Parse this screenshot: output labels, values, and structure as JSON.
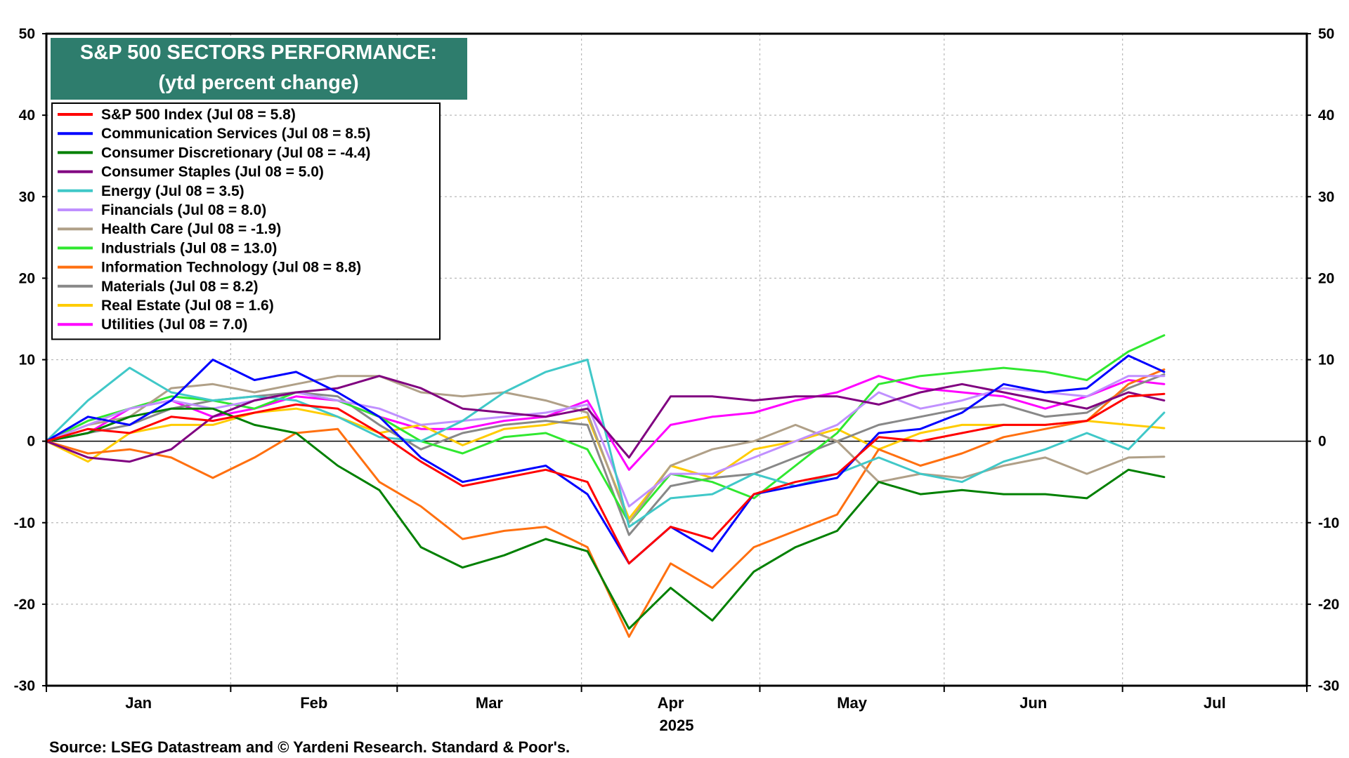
{
  "chart_data": {
    "type": "line",
    "title": "S&P 500 SECTORS PERFORMANCE:",
    "subtitle": "(ytd percent change)",
    "year_label": "2025",
    "source": "Source: LSEG Datastream and © Yardeni Research. Standard & Poor's.",
    "ylim": [
      -30,
      50
    ],
    "y_ticks": [
      -30,
      -20,
      -10,
      0,
      10,
      20,
      30,
      40,
      50
    ],
    "months": [
      "Jan",
      "Feb",
      "Mar",
      "Apr",
      "May",
      "Jun",
      "Jul"
    ],
    "x_range_days": [
      0,
      212
    ],
    "grid": true,
    "legend_position": "top-left",
    "title_box_color": "#2e7d6d",
    "x": [
      0,
      7,
      14,
      21,
      28,
      35,
      42,
      49,
      56,
      63,
      70,
      77,
      84,
      91,
      98,
      105,
      112,
      119,
      126,
      133,
      140,
      147,
      154,
      161,
      168,
      175,
      182,
      188
    ],
    "series": [
      {
        "name": "S&P 500 Index (Jul 08 = 5.8)",
        "color": "#ff0000",
        "values": [
          0,
          1.5,
          1.0,
          3.0,
          2.5,
          3.5,
          4.5,
          4.0,
          1.0,
          -2.5,
          -5.5,
          -4.5,
          -3.5,
          -5.0,
          -15.0,
          -10.5,
          -12.0,
          -6.5,
          -5.0,
          -4.0,
          0.5,
          0.0,
          1.0,
          2.0,
          2.0,
          2.5,
          5.5,
          5.8
        ]
      },
      {
        "name": "Communication Services (Jul 08 = 8.5)",
        "color": "#0000ff",
        "values": [
          0,
          3.0,
          2.0,
          5.0,
          10.0,
          7.5,
          8.5,
          6.0,
          3.0,
          -2.0,
          -5.0,
          -4.0,
          -3.0,
          -6.5,
          -15.0,
          -10.5,
          -13.5,
          -6.5,
          -5.5,
          -4.5,
          1.0,
          1.5,
          3.5,
          7.0,
          6.0,
          6.5,
          10.5,
          8.5
        ]
      },
      {
        "name": "Consumer Discretionary (Jul 08 = -4.4)",
        "color": "#008000",
        "values": [
          0,
          1.0,
          3.0,
          4.0,
          4.0,
          2.0,
          1.0,
          -3.0,
          -6.0,
          -13.0,
          -15.5,
          -14.0,
          -12.0,
          -13.5,
          -23.0,
          -18.0,
          -22.0,
          -16.0,
          -13.0,
          -11.0,
          -5.0,
          -6.5,
          -6.0,
          -6.5,
          -6.5,
          -7.0,
          -3.5,
          -4.4
        ]
      },
      {
        "name": "Consumer Staples (Jul 08 = 5.0)",
        "color": "#800080",
        "values": [
          0,
          -2.0,
          -2.5,
          -1.0,
          3.0,
          5.0,
          6.0,
          6.5,
          8.0,
          6.5,
          4.0,
          3.5,
          3.0,
          4.0,
          -2.0,
          5.5,
          5.5,
          5.0,
          5.5,
          5.5,
          4.5,
          6.0,
          7.0,
          6.0,
          5.0,
          4.0,
          6.0,
          5.0
        ]
      },
      {
        "name": "Energy (Jul 08 = 3.5)",
        "color": "#40c8c8",
        "values": [
          0,
          5.0,
          9.0,
          6.0,
          5.0,
          5.5,
          5.0,
          3.0,
          0.5,
          0.0,
          2.5,
          6.0,
          8.5,
          10.0,
          -10.5,
          -7.0,
          -6.5,
          -4.0,
          -5.5,
          -4.0,
          -2.0,
          -4.0,
          -5.0,
          -2.5,
          -1.0,
          1.0,
          -1.0,
          3.5
        ]
      },
      {
        "name": "Financials (Jul 08 = 8.0)",
        "color": "#c090ff",
        "values": [
          0,
          2.0,
          4.0,
          5.0,
          4.0,
          5.0,
          6.0,
          5.0,
          4.0,
          2.0,
          2.5,
          3.0,
          3.5,
          4.5,
          -8.0,
          -4.0,
          -4.0,
          -2.0,
          0.0,
          2.0,
          6.0,
          4.0,
          5.0,
          6.5,
          6.0,
          5.5,
          8.0,
          8.0
        ]
      },
      {
        "name": "Health Care (Jul 08 = -1.9)",
        "color": "#b0a088",
        "values": [
          0,
          2.0,
          3.0,
          6.5,
          7.0,
          6.0,
          7.0,
          8.0,
          8.0,
          6.0,
          5.5,
          6.0,
          5.0,
          3.5,
          -10.0,
          -3.0,
          -1.0,
          0.0,
          2.0,
          0.0,
          -5.0,
          -4.0,
          -4.5,
          -3.0,
          -2.0,
          -4.0,
          -2.0,
          -1.9
        ]
      },
      {
        "name": "Industrials (Jul 08 = 13.0)",
        "color": "#30e830",
        "values": [
          0,
          2.5,
          4.0,
          5.5,
          5.0,
          4.0,
          6.0,
          5.0,
          3.0,
          0.0,
          -1.5,
          0.5,
          1.0,
          -1.0,
          -10.0,
          -4.0,
          -5.0,
          -7.0,
          -3.0,
          1.0,
          7.0,
          8.0,
          8.5,
          9.0,
          8.5,
          7.5,
          11.0,
          13.0
        ]
      },
      {
        "name": "Information Technology (Jul 08 = 8.8)",
        "color": "#ff7010",
        "values": [
          0,
          -1.5,
          -1.0,
          -2.0,
          -4.5,
          -2.0,
          1.0,
          1.5,
          -5.0,
          -8.0,
          -12.0,
          -11.0,
          -10.5,
          -13.0,
          -24.0,
          -15.0,
          -18.0,
          -13.0,
          -11.0,
          -9.0,
          -1.0,
          -3.0,
          -1.5,
          0.5,
          1.5,
          2.5,
          7.0,
          8.8
        ]
      },
      {
        "name": "Materials (Jul 08 = 8.2)",
        "color": "#888888",
        "values": [
          0,
          1.0,
          2.0,
          4.0,
          5.0,
          5.5,
          6.0,
          5.5,
          2.0,
          -1.0,
          1.0,
          2.0,
          2.5,
          2.0,
          -11.5,
          -5.5,
          -4.5,
          -4.0,
          -2.0,
          0.0,
          2.0,
          3.0,
          4.0,
          4.5,
          3.0,
          3.5,
          6.5,
          8.2
        ]
      },
      {
        "name": "Real Estate (Jul 08 = 1.6)",
        "color": "#ffcc00",
        "values": [
          0,
          -2.5,
          1.0,
          2.0,
          2.0,
          3.5,
          4.0,
          3.0,
          1.0,
          2.0,
          -0.5,
          1.5,
          2.0,
          3.0,
          -9.5,
          -3.0,
          -4.5,
          -1.0,
          0.0,
          1.5,
          -1.0,
          1.0,
          2.0,
          2.0,
          2.0,
          2.5,
          2.0,
          1.6
        ]
      },
      {
        "name": "Utilities (Jul 08 = 7.0)",
        "color": "#ff00ff",
        "values": [
          0,
          1.0,
          4.0,
          5.0,
          3.0,
          4.0,
          5.5,
          5.0,
          3.0,
          1.5,
          1.5,
          2.5,
          3.0,
          5.0,
          -3.5,
          2.0,
          3.0,
          3.5,
          5.0,
          6.0,
          8.0,
          6.5,
          6.0,
          5.5,
          4.0,
          5.5,
          7.5,
          7.0
        ]
      }
    ]
  }
}
